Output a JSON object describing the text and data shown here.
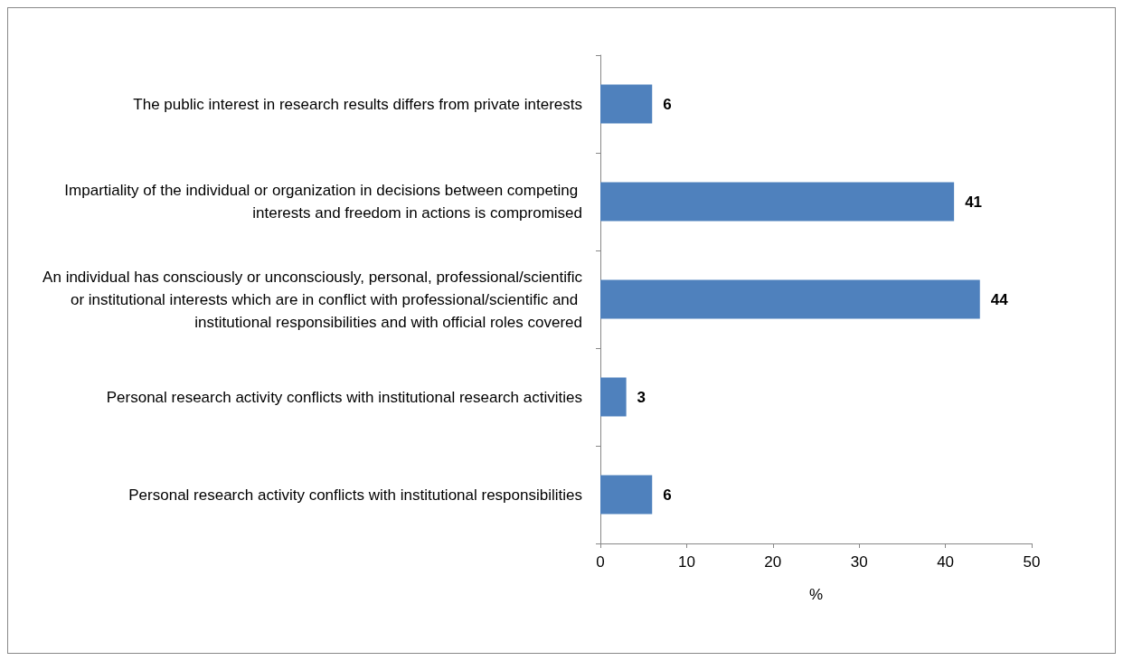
{
  "chart_data": {
    "type": "bar",
    "orientation": "horizontal",
    "xlabel": "%",
    "categories": [
      "The public interest in research results differs from private interests",
      "Impartiality of the individual or organization in decisions between competing interests and freedom in actions is compromised",
      "An individual has consciously or unconsciously, personal, professional/scientific or institutional interests which are in conflict with professional/scientific and institutional responsibilities and with official roles covered",
      "Personal research activity conflicts with institutional research activities",
      "Personal research activity conflicts with institutional responsibilities"
    ],
    "values": [
      6,
      41,
      44,
      3,
      6
    ],
    "color": "#4f81bd",
    "xlim": [
      0,
      50
    ],
    "xticks": [
      0,
      10,
      20,
      30,
      40,
      50
    ],
    "data_labels": true
  }
}
